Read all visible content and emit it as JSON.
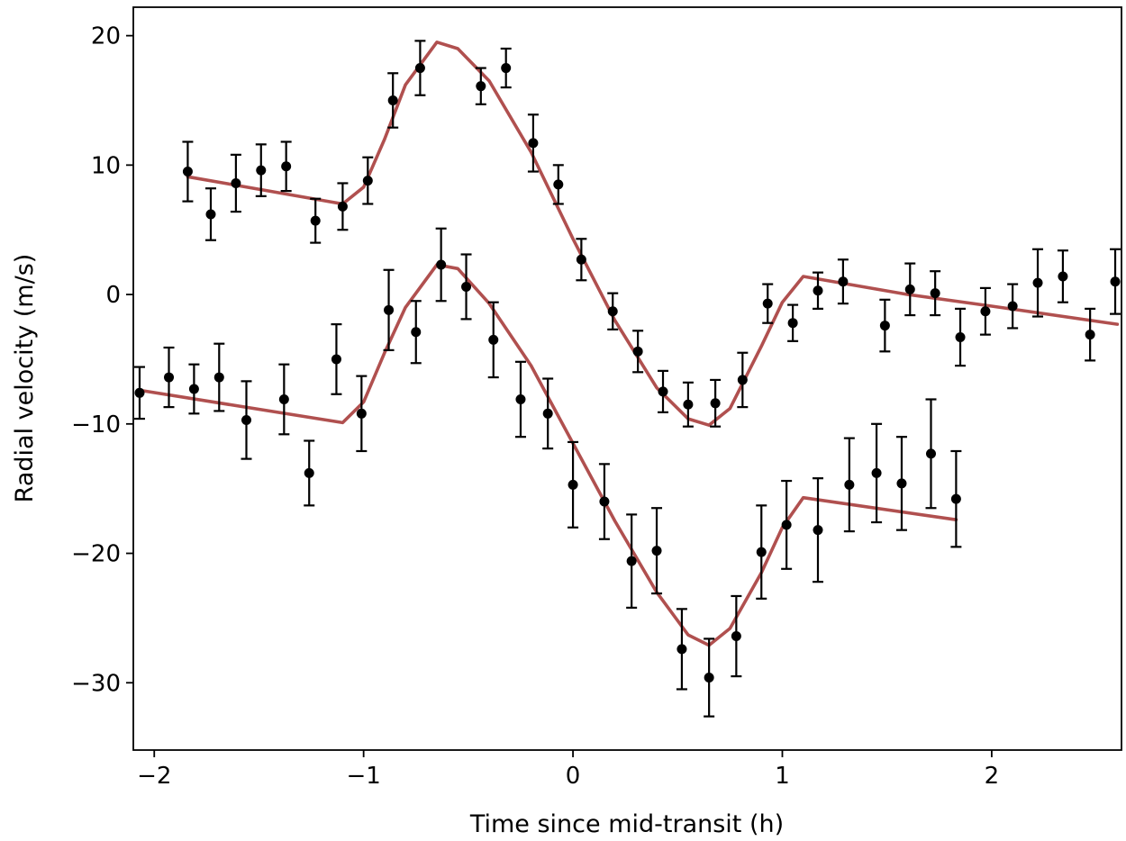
{
  "chart_data": {
    "type": "scatter",
    "xlabel": "Time since mid-transit (h)",
    "ylabel": "Radial velocity (m/s)",
    "xlim": [
      -2.1,
      2.62
    ],
    "ylim": [
      -35.2,
      22.2
    ],
    "xticks": [
      -2,
      -1,
      0,
      1,
      2
    ],
    "xtick_labels": [
      "−2",
      "−1",
      "0",
      "1",
      "2"
    ],
    "yticks": [
      20,
      10,
      0,
      -10,
      -20,
      -30
    ],
    "ytick_labels": [
      "20",
      "10",
      "0",
      "−10",
      "−20",
      "−30"
    ],
    "grid": false,
    "colors": {
      "model": "#b0504f",
      "points": "#000000"
    },
    "series": [
      {
        "points": [
          [
            -1.84,
            9.5,
            2.3
          ],
          [
            -1.73,
            6.2,
            2.0
          ],
          [
            -1.61,
            8.6,
            2.2
          ],
          [
            -1.49,
            9.6,
            2.0
          ],
          [
            -1.37,
            9.9,
            1.9
          ],
          [
            -1.23,
            5.7,
            1.7
          ],
          [
            -1.1,
            6.8,
            1.8
          ],
          [
            -0.98,
            8.8,
            1.8
          ],
          [
            -0.86,
            15.0,
            2.1
          ],
          [
            -0.73,
            17.5,
            2.1
          ],
          [
            -0.44,
            16.1,
            1.4
          ],
          [
            -0.32,
            17.5,
            1.5
          ],
          [
            -0.19,
            11.7,
            2.2
          ],
          [
            -0.07,
            8.5,
            1.5
          ],
          [
            0.04,
            2.7,
            1.6
          ],
          [
            0.19,
            -1.3,
            1.4
          ],
          [
            0.31,
            -4.4,
            1.6
          ],
          [
            0.43,
            -7.5,
            1.6
          ],
          [
            0.55,
            -8.5,
            1.7
          ],
          [
            0.68,
            -8.4,
            1.8
          ],
          [
            0.81,
            -6.6,
            2.1
          ],
          [
            0.93,
            -0.7,
            1.5
          ],
          [
            1.05,
            -2.2,
            1.4
          ],
          [
            1.17,
            0.3,
            1.4
          ],
          [
            1.29,
            1.0,
            1.7
          ],
          [
            1.49,
            -2.4,
            2.0
          ],
          [
            1.61,
            0.4,
            2.0
          ],
          [
            1.73,
            0.1,
            1.7
          ],
          [
            1.85,
            -3.3,
            2.2
          ],
          [
            1.97,
            -1.3,
            1.8
          ],
          [
            2.1,
            -0.9,
            1.7
          ],
          [
            2.22,
            0.9,
            2.6
          ],
          [
            2.34,
            1.4,
            2.0
          ],
          [
            2.47,
            -3.1,
            2.0
          ],
          [
            2.59,
            1.0,
            2.5
          ]
        ],
        "model": [
          [
            -1.84,
            9.1
          ],
          [
            -1.1,
            7.0
          ],
          [
            -1.0,
            8.3
          ],
          [
            -0.9,
            12.0
          ],
          [
            -0.8,
            16.2
          ],
          [
            -0.65,
            19.5
          ],
          [
            -0.55,
            19.0
          ],
          [
            -0.4,
            16.5
          ],
          [
            -0.2,
            11.0
          ],
          [
            0.0,
            4.3
          ],
          [
            0.2,
            -2.0
          ],
          [
            0.4,
            -7.2
          ],
          [
            0.55,
            -9.6
          ],
          [
            0.65,
            -10.1
          ],
          [
            0.75,
            -8.8
          ],
          [
            0.9,
            -4.0
          ],
          [
            1.0,
            -0.6
          ],
          [
            1.1,
            1.4
          ],
          [
            1.6,
            0.0
          ],
          [
            2.0,
            -0.9
          ],
          [
            2.6,
            -2.3
          ]
        ]
      },
      {
        "points": [
          [
            -2.07,
            -7.6,
            2.0
          ],
          [
            -1.93,
            -6.4,
            2.3
          ],
          [
            -1.81,
            -7.3,
            1.9
          ],
          [
            -1.69,
            -6.4,
            2.6
          ],
          [
            -1.56,
            -9.7,
            3.0
          ],
          [
            -1.38,
            -8.1,
            2.7
          ],
          [
            -1.26,
            -13.8,
            2.5
          ],
          [
            -1.13,
            -5.0,
            2.7
          ],
          [
            -1.01,
            -9.2,
            2.9
          ],
          [
            -0.88,
            -1.2,
            3.1
          ],
          [
            -0.75,
            -2.9,
            2.4
          ],
          [
            -0.63,
            2.3,
            2.8
          ],
          [
            -0.51,
            0.6,
            2.5
          ],
          [
            -0.38,
            -3.5,
            2.9
          ],
          [
            -0.25,
            -8.1,
            2.9
          ],
          [
            -0.12,
            -9.2,
            2.7
          ],
          [
            0.0,
            -14.7,
            3.3
          ],
          [
            0.15,
            -16.0,
            2.9
          ],
          [
            0.28,
            -20.6,
            3.6
          ],
          [
            0.4,
            -19.8,
            3.3
          ],
          [
            0.52,
            -27.4,
            3.1
          ],
          [
            0.65,
            -29.6,
            3.0
          ],
          [
            0.78,
            -26.4,
            3.1
          ],
          [
            0.9,
            -19.9,
            3.6
          ],
          [
            1.02,
            -17.8,
            3.4
          ],
          [
            1.17,
            -18.2,
            4.0
          ],
          [
            1.32,
            -14.7,
            3.6
          ],
          [
            1.45,
            -13.8,
            3.8
          ],
          [
            1.57,
            -14.6,
            3.6
          ],
          [
            1.71,
            -12.3,
            4.2
          ],
          [
            1.83,
            -15.8,
            3.7
          ]
        ],
        "model": [
          [
            -2.07,
            -7.4
          ],
          [
            -1.1,
            -9.9
          ],
          [
            -1.0,
            -8.3
          ],
          [
            -0.9,
            -4.5
          ],
          [
            -0.8,
            -1.0
          ],
          [
            -0.65,
            2.3
          ],
          [
            -0.55,
            2.0
          ],
          [
            -0.4,
            -0.7
          ],
          [
            -0.2,
            -5.5
          ],
          [
            0.0,
            -11.5
          ],
          [
            0.2,
            -17.5
          ],
          [
            0.4,
            -23.0
          ],
          [
            0.55,
            -26.3
          ],
          [
            0.65,
            -27.1
          ],
          [
            0.75,
            -25.8
          ],
          [
            0.9,
            -21.5
          ],
          [
            1.0,
            -18.0
          ],
          [
            1.1,
            -15.7
          ],
          [
            1.83,
            -17.4
          ]
        ]
      }
    ]
  }
}
